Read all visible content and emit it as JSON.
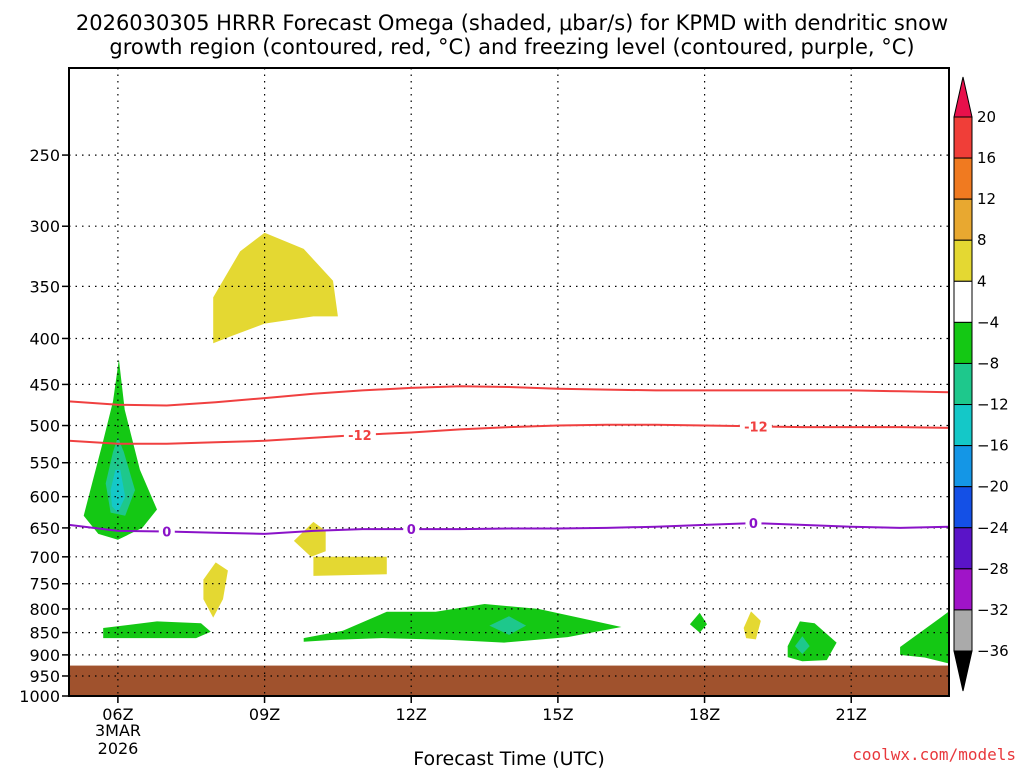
{
  "chart_data": {
    "type": "time-height contour",
    "title_line1": "2026030305 HRRR Forecast Omega (shaded, μbar/s) for KPMD with dendritic snow",
    "title_line2": "growth region (contoured, red, °C) and freezing level (contoured, purple, °C)",
    "xlabel": "Forecast Time (UTC)",
    "ylabel": "",
    "x_range_hours": [
      5,
      23
    ],
    "y_range_hPa": [
      200,
      1000
    ],
    "x_ticks": [
      {
        "hour": 6,
        "label": "06Z"
      },
      {
        "hour": 9,
        "label": "09Z"
      },
      {
        "hour": 12,
        "label": "12Z"
      },
      {
        "hour": 15,
        "label": "15Z"
      },
      {
        "hour": 18,
        "label": "18Z"
      },
      {
        "hour": 21,
        "label": "21Z"
      }
    ],
    "date_label_line1": "3MAR",
    "date_label_line2": "2026",
    "y_ticks": [
      250,
      300,
      350,
      400,
      450,
      500,
      550,
      600,
      650,
      700,
      750,
      800,
      850,
      900,
      950,
      1000
    ],
    "ground_level_hPa": 925,
    "ground_color": "#a0522d",
    "colorbar": {
      "levels": [
        20,
        16,
        12,
        8,
        4,
        -4,
        -8,
        -12,
        -16,
        -20,
        -24,
        -28,
        -32,
        -36
      ],
      "colors": [
        "#e8104b",
        "#f03e38",
        "#f07a20",
        "#e8a830",
        "#e4d832",
        "#ffffff",
        "#14c814",
        "#1ec88c",
        "#14c8c8",
        "#1496e6",
        "#1450e6",
        "#5a14c8",
        "#a014c8",
        "#aaaaaa",
        "#000000"
      ]
    },
    "shaded_regions": [
      {
        "category": "-4 to -8",
        "color": "#14c814",
        "description": "ascent column near 06Z",
        "points": [
          [
            5.4,
            600
          ],
          [
            5.7,
            520
          ],
          [
            5.9,
            470
          ],
          [
            6.02,
            422
          ],
          [
            6.14,
            480
          ],
          [
            6.45,
            560
          ],
          [
            6.8,
            620
          ],
          [
            6.5,
            650
          ],
          [
            6.0,
            670
          ],
          [
            5.6,
            660
          ],
          [
            5.3,
            630
          ]
        ]
      },
      {
        "category": "-8 to -12",
        "color": "#1ec88c",
        "points": [
          [
            5.75,
            580
          ],
          [
            5.9,
            535
          ],
          [
            6.0,
            515
          ],
          [
            6.12,
            535
          ],
          [
            6.35,
            590
          ],
          [
            6.15,
            630
          ],
          [
            5.85,
            625
          ]
        ]
      },
      {
        "category": "-12 to -16",
        "color": "#14c8c8",
        "points": [
          [
            5.85,
            590
          ],
          [
            5.95,
            560
          ],
          [
            6.05,
            560
          ],
          [
            6.15,
            600
          ],
          [
            6.0,
            625
          ],
          [
            5.88,
            615
          ]
        ]
      },
      {
        "category": "4 to 8",
        "color": "#e4d832",
        "description": "upper ascent blob 08-10Z",
        "points": [
          [
            7.95,
            360
          ],
          [
            8.5,
            320
          ],
          [
            9.0,
            305
          ],
          [
            9.8,
            318
          ],
          [
            10.4,
            345
          ],
          [
            10.5,
            378
          ],
          [
            10.0,
            378
          ],
          [
            9.0,
            385
          ],
          [
            8.3,
            398
          ],
          [
            7.95,
            405
          ]
        ]
      },
      {
        "category": "4 to 8",
        "color": "#e4d832",
        "points": [
          [
            9.6,
            672
          ],
          [
            10.0,
            640
          ],
          [
            10.25,
            655
          ],
          [
            10.25,
            690
          ],
          [
            9.95,
            700
          ]
        ]
      },
      {
        "category": "4 to 8",
        "color": "#e4d832",
        "points": [
          [
            10.0,
            700
          ],
          [
            11.5,
            700
          ],
          [
            11.5,
            732
          ],
          [
            10.0,
            735
          ]
        ]
      },
      {
        "category": "4 to 8",
        "color": "#e4d832",
        "points": [
          [
            7.75,
            742
          ],
          [
            8.0,
            710
          ],
          [
            8.25,
            725
          ],
          [
            8.15,
            780
          ],
          [
            7.95,
            818
          ],
          [
            7.75,
            780
          ]
        ]
      },
      {
        "category": "4 to 8",
        "color": "#e4d832",
        "points": [
          [
            18.8,
            840
          ],
          [
            18.95,
            805
          ],
          [
            19.15,
            825
          ],
          [
            19.05,
            865
          ],
          [
            18.85,
            862
          ]
        ]
      },
      {
        "category": "-4 to -8",
        "color": "#14c814",
        "points": [
          [
            5.7,
            840
          ],
          [
            6.8,
            826
          ],
          [
            7.7,
            830
          ],
          [
            7.9,
            848
          ],
          [
            7.6,
            862
          ],
          [
            6.5,
            862
          ],
          [
            5.7,
            862
          ]
        ]
      },
      {
        "category": "-4 to -8",
        "color": "#14c814",
        "description": "low-level ascent band 10-16Z",
        "points": [
          [
            9.8,
            862
          ],
          [
            10.6,
            846
          ],
          [
            11.5,
            806
          ],
          [
            12.5,
            806
          ],
          [
            13.5,
            790
          ],
          [
            14.6,
            800
          ],
          [
            15.6,
            822
          ],
          [
            16.3,
            838
          ],
          [
            15.2,
            860
          ],
          [
            13.9,
            872
          ],
          [
            12.8,
            866
          ],
          [
            11.4,
            862
          ],
          [
            10.4,
            866
          ],
          [
            9.8,
            870
          ]
        ]
      },
      {
        "category": "-8 to -12",
        "color": "#1ec88c",
        "points": [
          [
            13.6,
            835
          ],
          [
            14.0,
            815
          ],
          [
            14.35,
            835
          ],
          [
            14.0,
            855
          ]
        ]
      },
      {
        "category": "-4 to -8",
        "color": "#14c814",
        "points": [
          [
            17.7,
            832
          ],
          [
            17.9,
            808
          ],
          [
            18.05,
            832
          ],
          [
            17.9,
            850
          ]
        ]
      },
      {
        "category": "-4 to -8",
        "color": "#14c814",
        "points": [
          [
            19.7,
            880
          ],
          [
            19.95,
            826
          ],
          [
            20.25,
            830
          ],
          [
            20.7,
            872
          ],
          [
            20.5,
            912
          ],
          [
            20.0,
            915
          ],
          [
            19.7,
            905
          ]
        ]
      },
      {
        "category": "-8 to -12",
        "color": "#1ec88c",
        "points": [
          [
            19.85,
            880
          ],
          [
            20.0,
            858
          ],
          [
            20.15,
            880
          ],
          [
            20.0,
            898
          ]
        ]
      },
      {
        "category": "-4 to -8",
        "color": "#14c814",
        "points": [
          [
            22.0,
            882
          ],
          [
            22.8,
            820
          ],
          [
            23.0,
            805
          ],
          [
            23.0,
            920
          ],
          [
            22.5,
            906
          ],
          [
            22.0,
            900
          ]
        ]
      }
    ],
    "contours": [
      {
        "name": "dendritic upper (-18 °C)",
        "color": "#f04040",
        "label": "",
        "points": [
          [
            5.0,
            470
          ],
          [
            6.0,
            474
          ],
          [
            7.0,
            475
          ],
          [
            8.0,
            471
          ],
          [
            9.0,
            466
          ],
          [
            10.0,
            461
          ],
          [
            11.0,
            457
          ],
          [
            12.0,
            454
          ],
          [
            13.0,
            452
          ],
          [
            14.0,
            453
          ],
          [
            15.0,
            455
          ],
          [
            16.0,
            456
          ],
          [
            17.0,
            457
          ],
          [
            18.0,
            457
          ],
          [
            19.0,
            457
          ],
          [
            20.0,
            457
          ],
          [
            21.0,
            457
          ],
          [
            22.0,
            458
          ],
          [
            23.0,
            459
          ]
        ]
      },
      {
        "name": "dendritic lower (-12 °C)",
        "color": "#f04040",
        "label": "-12",
        "label_hours": [
          10.95,
          19.05
        ],
        "points": [
          [
            5.0,
            520
          ],
          [
            6.0,
            524
          ],
          [
            7.0,
            524
          ],
          [
            8.0,
            522
          ],
          [
            9.0,
            520
          ],
          [
            10.0,
            516
          ],
          [
            11.0,
            512
          ],
          [
            12.0,
            509
          ],
          [
            13.0,
            505
          ],
          [
            14.0,
            502
          ],
          [
            15.0,
            500
          ],
          [
            16.0,
            499
          ],
          [
            17.0,
            499
          ],
          [
            18.0,
            500
          ],
          [
            19.0,
            501
          ],
          [
            20.0,
            502
          ],
          [
            21.0,
            502
          ],
          [
            22.0,
            502
          ],
          [
            23.0,
            503
          ]
        ]
      },
      {
        "name": "freezing level (0 °C)",
        "color": "#8a12c8",
        "label": "0",
        "label_hours": [
          7.0,
          12.0,
          19.0
        ],
        "points": [
          [
            5.0,
            645
          ],
          [
            6.0,
            655
          ],
          [
            7.0,
            656
          ],
          [
            8.0,
            658
          ],
          [
            9.0,
            660
          ],
          [
            10.0,
            655
          ],
          [
            11.0,
            652
          ],
          [
            12.0,
            652
          ],
          [
            13.0,
            652
          ],
          [
            14.0,
            651
          ],
          [
            15.0,
            651
          ],
          [
            16.0,
            650
          ],
          [
            17.0,
            648
          ],
          [
            18.0,
            645
          ],
          [
            19.0,
            642
          ],
          [
            20.0,
            645
          ],
          [
            21.0,
            648
          ],
          [
            22.0,
            650
          ],
          [
            23.0,
            648
          ]
        ]
      }
    ],
    "credit": "coolwx.com/models"
  }
}
